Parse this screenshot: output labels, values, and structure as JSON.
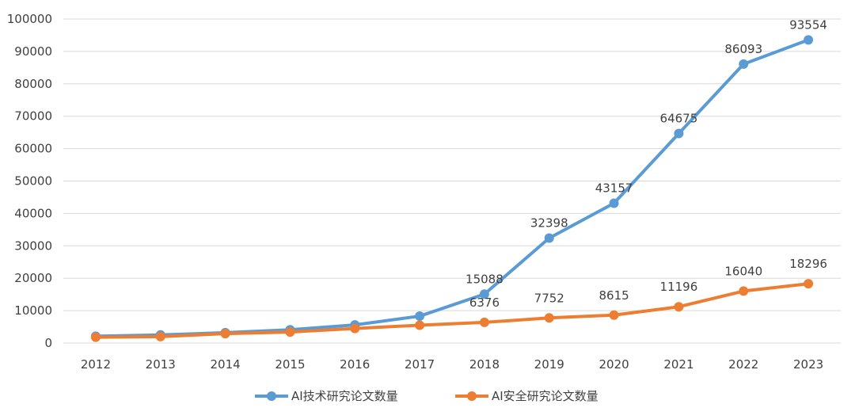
{
  "chart_data": {
    "type": "line",
    "title": "",
    "xlabel": "",
    "ylabel": "",
    "categories": [
      "2012",
      "2013",
      "2014",
      "2015",
      "2016",
      "2017",
      "2018",
      "2019",
      "2020",
      "2021",
      "2022",
      "2023"
    ],
    "ylim": [
      0,
      100000
    ],
    "yticks": [
      0,
      10000,
      20000,
      30000,
      40000,
      50000,
      60000,
      70000,
      80000,
      90000,
      100000
    ],
    "ytick_labels": [
      "0",
      "10000",
      "20000",
      "30000",
      "40000",
      "50000",
      "60000",
      "70000",
      "80000",
      "90000",
      "100000"
    ],
    "grid": true,
    "legend_position": "bottom",
    "series": [
      {
        "name": "AI技术研究论文数量",
        "color": "#5b9bd5",
        "values": [
          2100,
          2500,
          3200,
          4100,
          5600,
          8300,
          15088,
          32398,
          43157,
          64675,
          86093,
          93554
        ],
        "labels": [
          "",
          "",
          "",
          "",
          "",
          "",
          "15088",
          "32398",
          "43157",
          "64675",
          "86093",
          "93554"
        ]
      },
      {
        "name": "AI安全研究论文数量",
        "color": "#ed7d31",
        "values": [
          1800,
          2000,
          2900,
          3400,
          4500,
          5500,
          6376,
          7752,
          8615,
          11196,
          16040,
          18296
        ],
        "labels": [
          "",
          "",
          "",
          "",
          "",
          "",
          "6376",
          "7752",
          "8615",
          "11196",
          "16040",
          "18296"
        ]
      }
    ]
  }
}
